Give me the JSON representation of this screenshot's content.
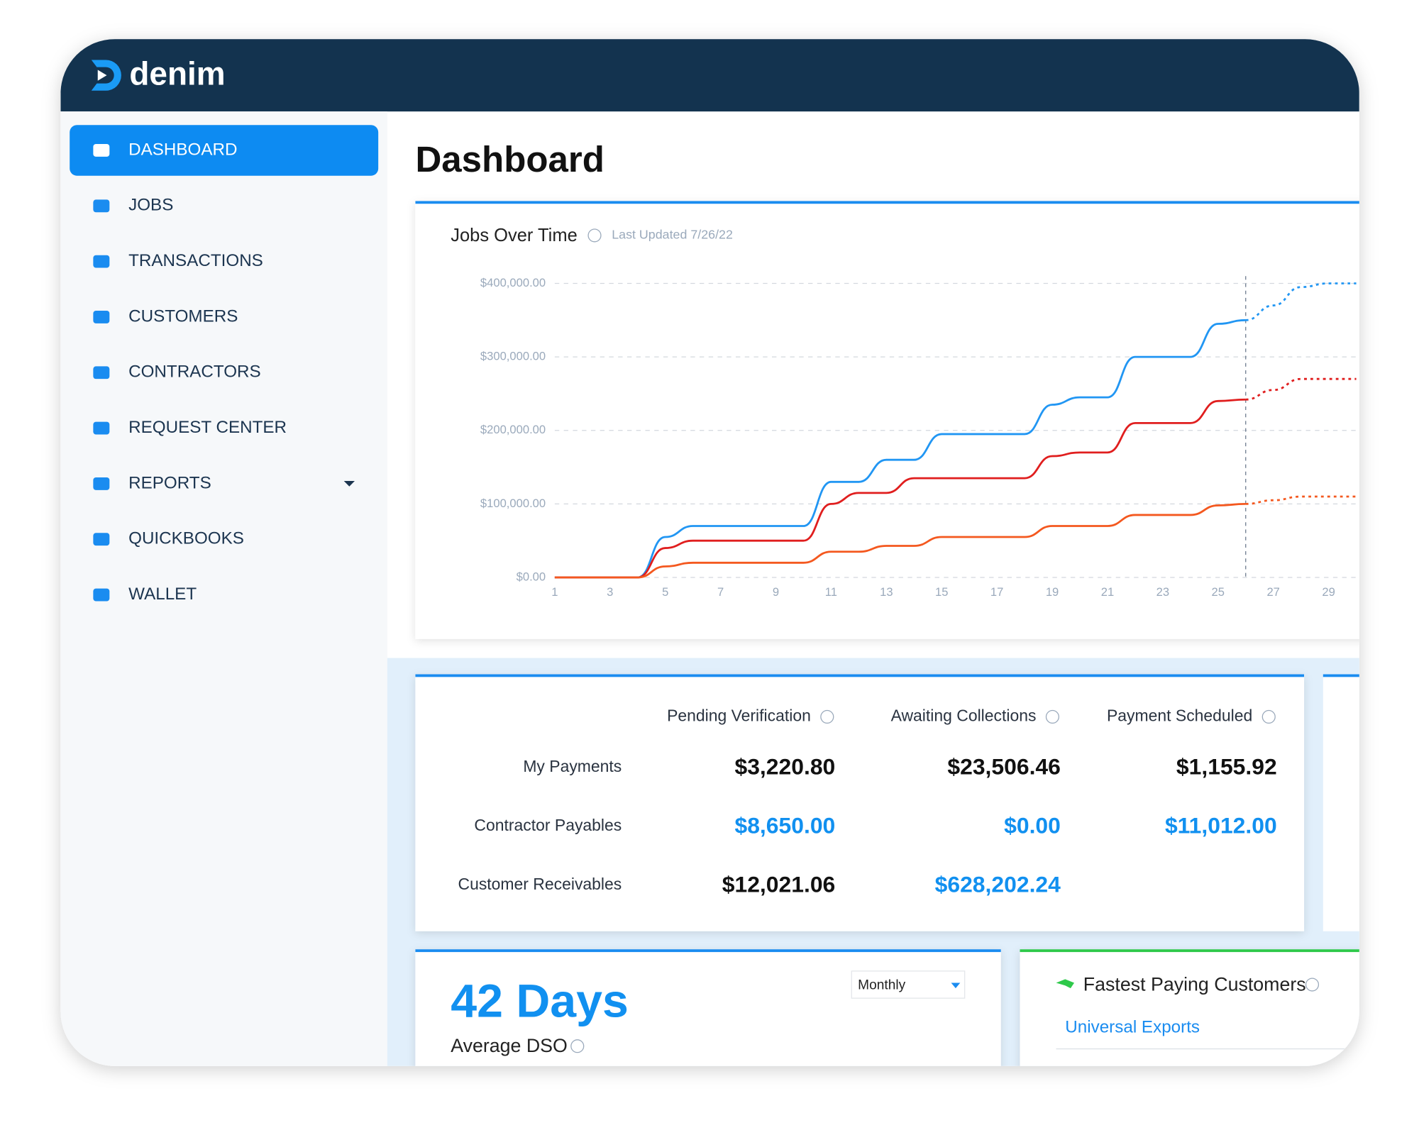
{
  "header": {
    "brand": "denim"
  },
  "sidebar": {
    "items": [
      "DASHBOARD",
      "JOBS",
      "TRANSACTIONS",
      "CUSTOMERS",
      "CONTRACTORS",
      "REQUEST CENTER",
      "REPORTS",
      "QUICKBOOKS",
      "WALLET"
    ]
  },
  "page_title": "Dashboard",
  "chart_data": {
    "type": "line",
    "title": "Jobs Over Time",
    "subtitle": "Last Updated 7/26/22",
    "x": [
      1,
      2,
      3,
      4,
      5,
      6,
      7,
      8,
      9,
      10,
      11,
      12,
      13,
      14,
      15,
      16,
      17,
      18,
      19,
      20,
      21,
      22,
      23,
      24,
      25,
      26,
      27,
      28,
      29,
      30
    ],
    "series": [
      {
        "color": "#2196f3",
        "values": [
          0,
          0,
          0,
          0,
          55000,
          70000,
          70000,
          70000,
          70000,
          70000,
          130000,
          130000,
          160000,
          160000,
          195000,
          195000,
          195000,
          195000,
          235000,
          245000,
          245000,
          300000,
          300000,
          300000,
          345000,
          350000,
          370000,
          395000,
          400000,
          400000
        ]
      },
      {
        "color": "#e01e1e",
        "values": [
          0,
          0,
          0,
          0,
          40000,
          50000,
          50000,
          50000,
          50000,
          50000,
          100000,
          115000,
          115000,
          135000,
          135000,
          135000,
          135000,
          135000,
          165000,
          170000,
          170000,
          210000,
          210000,
          210000,
          240000,
          242000,
          255000,
          270000,
          270000,
          270000
        ]
      },
      {
        "color": "#f4581f",
        "values": [
          0,
          0,
          0,
          0,
          15000,
          20000,
          20000,
          20000,
          20000,
          20000,
          35000,
          35000,
          43000,
          43000,
          55000,
          55000,
          55000,
          55000,
          70000,
          70000,
          70000,
          85000,
          85000,
          85000,
          98000,
          100000,
          105000,
          110000,
          110000,
          110000
        ]
      }
    ],
    "projected_from": 26,
    "xlim": [
      1,
      30
    ],
    "xticks": [
      1,
      3,
      5,
      7,
      9,
      11,
      13,
      15,
      17,
      19,
      21,
      23,
      25,
      27,
      29
    ],
    "ylim": [
      0,
      400000
    ],
    "yticks": [
      {
        "value": 0,
        "label": "$0.00"
      },
      {
        "value": 100000,
        "label": "$100,000.00"
      },
      {
        "value": 200000,
        "label": "$200,000.00"
      },
      {
        "value": 300000,
        "label": "$300,000.00"
      },
      {
        "value": 400000,
        "label": "$400,000.00"
      }
    ],
    "grid": true
  },
  "payments_table": {
    "columns": [
      "Pending Verification",
      "Awaiting Collections",
      "Payment Scheduled"
    ],
    "rows": [
      {
        "label": "My Payments",
        "values": [
          "$3,220.80",
          "$23,506.46",
          "$1,155.92"
        ]
      },
      {
        "label": "Contractor Payables",
        "values": [
          "$8,650.00",
          "$0.00",
          "$11,012.00"
        ]
      },
      {
        "label": "Customer Receivables",
        "values": [
          "$12,021.06",
          "$628,202.24"
        ]
      }
    ]
  },
  "dso_card": {
    "value": "42 Days",
    "label": "Average DSO",
    "period": "Monthly"
  },
  "fastest_paying": {
    "title": "Fastest Paying Customers",
    "customers": [
      "Universal Exports"
    ]
  }
}
